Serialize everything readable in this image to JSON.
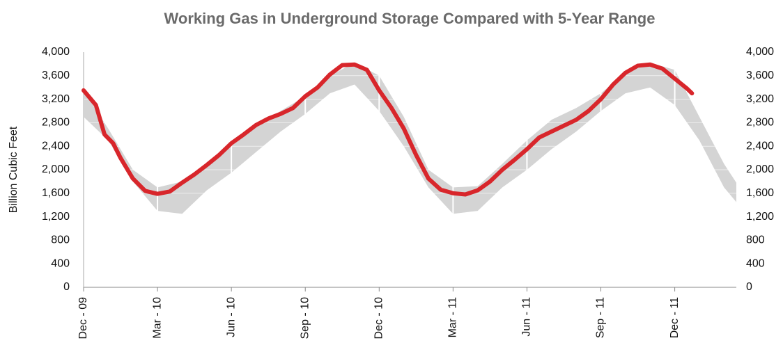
{
  "chart_data": {
    "type": "line",
    "title": "Working Gas in Underground Storage Compared with 5-Year Range",
    "ylabel": "Billion Cubic Feet",
    "xlim": [
      0,
      26.5
    ],
    "xticks": [
      {
        "value": 0,
        "label": "Dec - 09"
      },
      {
        "value": 3,
        "label": "Mar - 10"
      },
      {
        "value": 6,
        "label": "Jun - 10"
      },
      {
        "value": 9,
        "label": "Sep - 10"
      },
      {
        "value": 12,
        "label": "Dec - 10"
      },
      {
        "value": 15,
        "label": "Mar - 11"
      },
      {
        "value": 18,
        "label": "Jun - 11"
      },
      {
        "value": 21,
        "label": "Sep - 11"
      },
      {
        "value": 24,
        "label": "Dec - 11"
      }
    ],
    "ylim": [
      0,
      4000
    ],
    "yticks": [
      0,
      400,
      800,
      {
        "value": 1200,
        "label": "1,200"
      },
      {
        "value": 1600,
        "label": "1,600"
      },
      {
        "value": 2000,
        "label": "2,000"
      },
      {
        "value": 2400,
        "label": "2,400"
      },
      {
        "value": 2800,
        "label": "2,800"
      },
      {
        "value": 3200,
        "label": "3,200"
      },
      {
        "value": 3600,
        "label": "3,600"
      },
      {
        "value": 4000,
        "label": "4,000"
      }
    ],
    "grid": true,
    "band": {
      "color": "#d4d4d4",
      "x": [
        0,
        1,
        2,
        3,
        4,
        5,
        6,
        7,
        8,
        9,
        10,
        11,
        12,
        13,
        14,
        15,
        16,
        17,
        18,
        19,
        20,
        21,
        22,
        23,
        24,
        25,
        26,
        26.5
      ],
      "upper": [
        3350,
        2700,
        2000,
        1700,
        1800,
        2100,
        2400,
        2750,
        3000,
        3250,
        3600,
        3820,
        3600,
        2900,
        2000,
        1700,
        1720,
        2100,
        2500,
        2850,
        3050,
        3300,
        3650,
        3820,
        3700,
        2900,
        2100,
        1780
      ],
      "lower": [
        2900,
        2500,
        1800,
        1300,
        1250,
        1650,
        1950,
        2300,
        2650,
        2950,
        3300,
        3450,
        3000,
        2400,
        1700,
        1250,
        1300,
        1700,
        2000,
        2350,
        2650,
        3000,
        3300,
        3400,
        3100,
        2500,
        1700,
        1450
      ]
    },
    "line": {
      "color": "#d8262b",
      "x": [
        0,
        0.5,
        0.85,
        1.2,
        1.5,
        2,
        2.5,
        3,
        3.5,
        4,
        4.5,
        5,
        5.5,
        6,
        6.5,
        7,
        7.5,
        8,
        8.5,
        9,
        9.5,
        10,
        10.5,
        11,
        11.5,
        12,
        12.5,
        13,
        13.5,
        14,
        14.5,
        15,
        15.5,
        16,
        16.5,
        17,
        17.5,
        18,
        18.5,
        19,
        19.5,
        20,
        20.5,
        21,
        21.5,
        22,
        22.5,
        23,
        23.5,
        24,
        24.5,
        24.7
      ],
      "values": [
        3350,
        3100,
        2600,
        2450,
        2200,
        1850,
        1640,
        1590,
        1630,
        1780,
        1920,
        2080,
        2250,
        2450,
        2600,
        2760,
        2870,
        2950,
        3050,
        3250,
        3400,
        3620,
        3780,
        3790,
        3700,
        3350,
        3050,
        2700,
        2250,
        1850,
        1660,
        1600,
        1580,
        1650,
        1800,
        2000,
        2170,
        2350,
        2550,
        2650,
        2750,
        2850,
        3000,
        3200,
        3450,
        3650,
        3770,
        3790,
        3720,
        3550,
        3380,
        3300
      ]
    }
  }
}
